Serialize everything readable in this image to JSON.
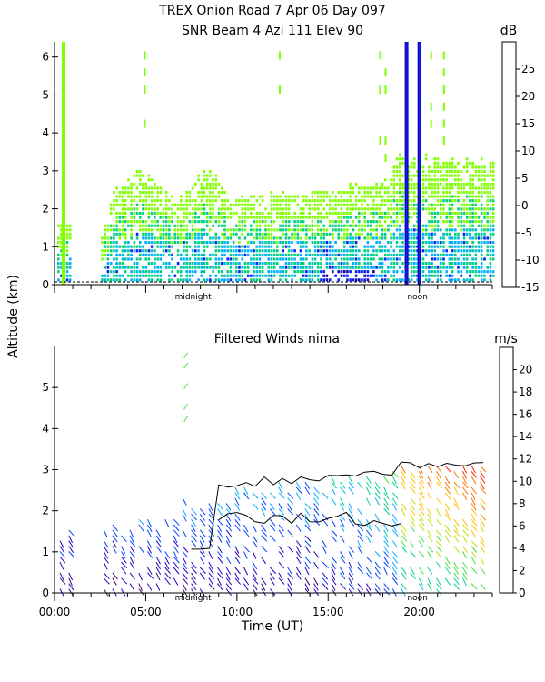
{
  "title_line1": "TREX Onion Road    7 Apr 06 Day 097",
  "title_line2": "SNR Beam 4 Azi 111 Elev 90",
  "y_axis_label": "Altitude (km)",
  "x_axis_label": "Time (UT)",
  "chart_data": [
    {
      "type": "heatmap",
      "title": "SNR Beam 4 Azi 111 Elev 90",
      "ylabel": "Altitude (km)",
      "ylim": [
        0,
        6.4
      ],
      "yticks": [
        "0",
        "1",
        "2",
        "3",
        "4",
        "5",
        "6"
      ],
      "xlim_hours": [
        0,
        24
      ],
      "markers": [
        "midnight",
        "noon"
      ],
      "colorbar": {
        "unit": "dB",
        "range": [
          -15,
          30
        ],
        "ticks": [
          "25",
          "20",
          "15",
          "10",
          "5",
          "0",
          "-5",
          "-10",
          "-15"
        ],
        "colors": [
          "#7fff00",
          "#00d080",
          "#00b0ff",
          "#0020ff",
          "#1800a8",
          "#400088",
          "#e00000",
          "#ff8000",
          "#ffd000"
        ]
      },
      "features": {
        "cloud_top_km": 3.0,
        "strong_columns_hours": [
          0.5,
          19.3,
          20.0
        ]
      }
    },
    {
      "type": "scatter",
      "title": "Filtered Winds nima",
      "ylabel": "Altitude (km)",
      "xlabel": "Time (UT)",
      "ylim": [
        0,
        6
      ],
      "yticks": [
        "0",
        "1",
        "2",
        "3",
        "4",
        "5"
      ],
      "xlim_hours": [
        0,
        24
      ],
      "xticks": [
        "00:00",
        "05:00",
        "10:00",
        "15:00",
        "20:00"
      ],
      "markers": [
        "midnight",
        "noon"
      ],
      "colorbar": {
        "unit": "m/s",
        "range": [
          0,
          22
        ],
        "ticks": [
          "20",
          "18",
          "16",
          "14",
          "12",
          "10",
          "8",
          "6",
          "4",
          "2",
          "0"
        ],
        "colors": [
          "#000000",
          "#400060",
          "#2000c0",
          "#0040ff",
          "#00b0ff",
          "#00d090",
          "#40e040",
          "#c0e000",
          "#ffc000",
          "#ff7000",
          "#ff2000"
        ]
      },
      "features": {
        "mixed_layer_top_km": 3.0
      }
    }
  ]
}
